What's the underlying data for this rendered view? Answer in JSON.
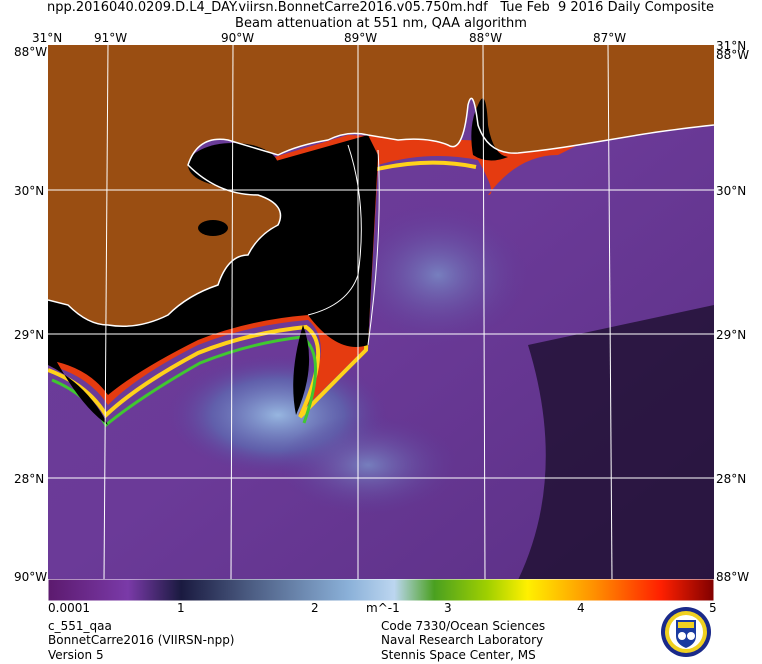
{
  "header": {
    "file_name": "npp.2016040.0209.D.L4_DAY.viirsn.BonnetCarre2016.v05.750m.hdf",
    "date_label": "Tue Feb  9 2016 Daily Composite",
    "product": "Beam attenuation at 551 nm, QAA algorithm"
  },
  "map": {
    "lon_ticks_top": [
      "91°W",
      "90°W",
      "89°W",
      "88°W",
      "87°W"
    ],
    "lon_ticks_bottom": [
      "90°W",
      "88°W"
    ],
    "lat_ticks": [
      "31°N",
      "30°N",
      "29°N",
      "28°N"
    ],
    "corner_top_left": [
      "31°N",
      "88°W"
    ],
    "corner_top_right": [
      "31°N",
      "88°W"
    ],
    "corner_bottom_left": "90°W",
    "corner_bottom_right": "88°W",
    "lon_range": [
      -91.6,
      -86.7
    ],
    "lat_range": [
      27.65,
      31.0
    ],
    "colors": {
      "land": "#9a4e12",
      "no_data": "#000000",
      "coast": "#ffffff",
      "grid": "#ffffff"
    }
  },
  "colorbar": {
    "labels": [
      "0.0001",
      "1",
      "2",
      "m^-1",
      "3",
      "4",
      "5"
    ],
    "range": [
      0.0001,
      5
    ],
    "unit": "m^-1"
  },
  "footer": {
    "left": [
      "c_551_qaa",
      "BonnetCarre2016 (VIIRSN-npp)",
      "Version 5"
    ],
    "right": [
      "Code 7330/Ocean Sciences",
      "Naval Research Laboratory",
      "Stennis Space Center, MS"
    ],
    "logo_name": "nrl-seal"
  }
}
